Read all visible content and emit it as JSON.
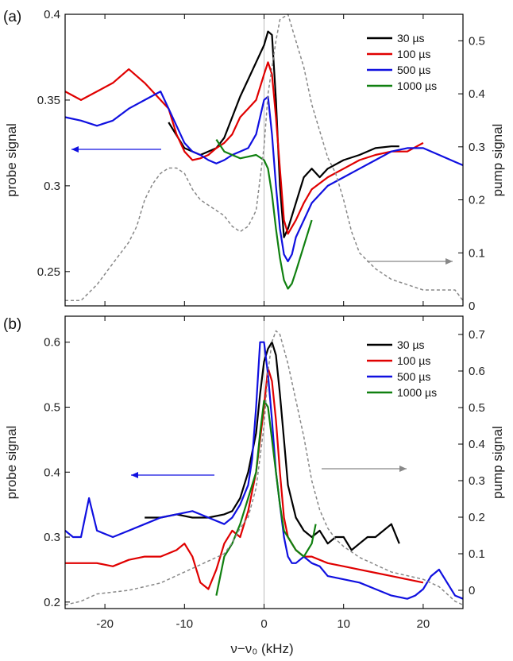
{
  "chart_data": [
    {
      "type": "line",
      "panel_label": "(a)",
      "xlabel": "ν−ν₀ (kHz)",
      "ylabel": "probe signal",
      "y2label": "pump signal",
      "xlim": [
        -25,
        25
      ],
      "ylim": [
        0.23,
        0.4
      ],
      "y2lim": [
        0,
        0.55
      ],
      "xticks": [
        "-20",
        "-10",
        "0",
        "10",
        "20"
      ],
      "yticks": [
        "0.25",
        "0.3",
        "0.35",
        "0.4"
      ],
      "y2ticks": [
        "0",
        "0.1",
        "0.2",
        "0.3",
        "0.4",
        "0.5"
      ],
      "legend_position": "top-right",
      "series": [
        {
          "name": "30 µs",
          "color": "#000000",
          "x": [
            -12,
            -10,
            -8,
            -6,
            -5,
            -4,
            -3,
            -2,
            -1,
            0,
            0.5,
            1,
            1.5,
            2,
            2.5,
            3,
            4,
            5,
            6,
            7,
            8,
            10,
            12,
            14,
            16,
            17
          ],
          "y": [
            0.337,
            0.322,
            0.318,
            0.322,
            0.328,
            0.34,
            0.352,
            0.362,
            0.372,
            0.382,
            0.39,
            0.388,
            0.35,
            0.3,
            0.27,
            0.275,
            0.29,
            0.305,
            0.31,
            0.305,
            0.31,
            0.315,
            0.318,
            0.322,
            0.323,
            0.323
          ]
        },
        {
          "name": "100 µs",
          "color": "#e00000",
          "x": [
            -25,
            -23,
            -21,
            -19,
            -17,
            -15,
            -13,
            -12,
            -11,
            -10,
            -9,
            -8,
            -7,
            -6,
            -5,
            -4,
            -3,
            -2,
            -1,
            0,
            0.5,
            1,
            1.5,
            2,
            2.5,
            3,
            4,
            5,
            6,
            8,
            10,
            12,
            14,
            16,
            18,
            20
          ],
          "y": [
            0.355,
            0.35,
            0.355,
            0.36,
            0.368,
            0.36,
            0.35,
            0.345,
            0.33,
            0.32,
            0.315,
            0.316,
            0.318,
            0.322,
            0.325,
            0.33,
            0.34,
            0.345,
            0.35,
            0.365,
            0.372,
            0.365,
            0.34,
            0.31,
            0.28,
            0.272,
            0.28,
            0.29,
            0.298,
            0.305,
            0.31,
            0.315,
            0.318,
            0.32,
            0.32,
            0.325
          ]
        },
        {
          "name": "500 µs",
          "color": "#1010e0",
          "x": [
            -25,
            -23,
            -21,
            -19,
            -17,
            -15,
            -13,
            -12,
            -11,
            -10,
            -9,
            -8,
            -7,
            -6,
            -5,
            -4,
            -3,
            -2,
            -1,
            0,
            0.5,
            1,
            1.5,
            2,
            2.5,
            3,
            3.5,
            4,
            5,
            6,
            8,
            10,
            12,
            14,
            16,
            18,
            20,
            22,
            24,
            25
          ],
          "y": [
            0.34,
            0.338,
            0.335,
            0.338,
            0.345,
            0.35,
            0.355,
            0.345,
            0.335,
            0.325,
            0.32,
            0.318,
            0.315,
            0.313,
            0.315,
            0.318,
            0.32,
            0.322,
            0.33,
            0.35,
            0.352,
            0.33,
            0.3,
            0.275,
            0.26,
            0.256,
            0.26,
            0.27,
            0.28,
            0.29,
            0.3,
            0.305,
            0.31,
            0.315,
            0.32,
            0.322,
            0.322,
            0.318,
            0.314,
            0.312
          ]
        },
        {
          "name": "1000 µs",
          "color": "#108010",
          "x": [
            -6,
            -5,
            -4,
            -3,
            -2,
            -1,
            0,
            0.5,
            1,
            1.5,
            2,
            2.5,
            3,
            3.5,
            4,
            5,
            6
          ],
          "y": [
            0.327,
            0.32,
            0.318,
            0.316,
            0.317,
            0.318,
            0.315,
            0.31,
            0.295,
            0.275,
            0.258,
            0.245,
            0.24,
            0.243,
            0.25,
            0.265,
            0.28
          ]
        },
        {
          "name": "",
          "color": "#888888",
          "dashed": true,
          "axis": "right",
          "x": [
            -25,
            -23,
            -21,
            -20,
            -19,
            -18,
            -17,
            -16,
            -15,
            -14,
            -13,
            -12,
            -11,
            -10,
            -9,
            -8,
            -7,
            -6,
            -5,
            -4,
            -3,
            -2,
            -1,
            0,
            0.5,
            1,
            1.5,
            2,
            3,
            4,
            5,
            6,
            7,
            8,
            9,
            10,
            11,
            12,
            14,
            16,
            18,
            20,
            22,
            24,
            25
          ],
          "y": [
            0.01,
            0.01,
            0.04,
            0.06,
            0.08,
            0.1,
            0.12,
            0.15,
            0.2,
            0.23,
            0.25,
            0.26,
            0.26,
            0.25,
            0.22,
            0.2,
            0.19,
            0.18,
            0.17,
            0.15,
            0.14,
            0.15,
            0.18,
            0.3,
            0.4,
            0.45,
            0.5,
            0.54,
            0.55,
            0.5,
            0.45,
            0.38,
            0.33,
            0.28,
            0.25,
            0.2,
            0.14,
            0.1,
            0.07,
            0.05,
            0.04,
            0.03,
            0.03,
            0.03,
            0.01
          ]
        }
      ],
      "arrows": [
        {
          "direction": "left",
          "axis": "probe",
          "color": "#1010e0"
        },
        {
          "direction": "right",
          "axis": "pump",
          "color": "#888888"
        }
      ]
    },
    {
      "type": "line",
      "panel_label": "(b)",
      "xlabel": "ν−ν₀ (kHz)",
      "ylabel": "probe signal",
      "y2label": "pump signal",
      "xlim": [
        -25,
        25
      ],
      "ylim": [
        0.19,
        0.64
      ],
      "y2lim": [
        -0.05,
        0.75
      ],
      "xticks": [
        "-20",
        "-10",
        "0",
        "10",
        "20"
      ],
      "yticks": [
        "0.2",
        "0.3",
        "0.4",
        "0.5",
        "0.6"
      ],
      "y2ticks": [
        "0",
        "0.1",
        "0.2",
        "0.3",
        "0.4",
        "0.5",
        "0.6",
        "0.7"
      ],
      "legend_position": "top-right",
      "series": [
        {
          "name": "30 µs",
          "color": "#000000",
          "x": [
            -15,
            -13,
            -11,
            -9,
            -7,
            -5,
            -4,
            -3,
            -2,
            -1,
            -0.5,
            0,
            0.5,
            1,
            1.5,
            2,
            2.5,
            3,
            4,
            5,
            6,
            7,
            8,
            9,
            10,
            11,
            12,
            13,
            14,
            15,
            16,
            17
          ],
          "y": [
            0.33,
            0.33,
            0.335,
            0.33,
            0.33,
            0.335,
            0.34,
            0.36,
            0.4,
            0.46,
            0.52,
            0.57,
            0.59,
            0.6,
            0.58,
            0.52,
            0.45,
            0.38,
            0.33,
            0.31,
            0.3,
            0.31,
            0.29,
            0.3,
            0.3,
            0.28,
            0.29,
            0.3,
            0.3,
            0.31,
            0.32,
            0.29
          ]
        },
        {
          "name": "100 µs",
          "color": "#e00000",
          "x": [
            -25,
            -23,
            -21,
            -19,
            -17,
            -15,
            -13,
            -12,
            -11,
            -10,
            -9,
            -8,
            -7,
            -6,
            -5,
            -4,
            -3,
            -2,
            -1,
            0,
            0.5,
            1,
            1.5,
            2,
            2.5,
            3,
            4,
            5,
            6,
            8,
            10,
            12,
            14,
            16,
            18,
            20
          ],
          "y": [
            0.26,
            0.26,
            0.26,
            0.255,
            0.265,
            0.27,
            0.27,
            0.275,
            0.28,
            0.29,
            0.27,
            0.23,
            0.22,
            0.25,
            0.29,
            0.31,
            0.3,
            0.34,
            0.4,
            0.5,
            0.56,
            0.54,
            0.48,
            0.4,
            0.33,
            0.3,
            0.28,
            0.27,
            0.27,
            0.26,
            0.255,
            0.25,
            0.245,
            0.24,
            0.235,
            0.23
          ]
        },
        {
          "name": "500 µs",
          "color": "#1010e0",
          "x": [
            -25,
            -24,
            -23,
            -22,
            -21,
            -19,
            -17,
            -15,
            -13,
            -11,
            -9,
            -7,
            -5,
            -4,
            -3,
            -2,
            -1.5,
            -1,
            -0.5,
            0,
            0.5,
            1,
            1.5,
            2,
            2.5,
            3,
            3.5,
            4,
            5,
            6,
            7,
            8,
            10,
            12,
            14,
            16,
            18,
            19,
            20,
            21,
            22,
            23,
            24,
            25
          ],
          "y": [
            0.31,
            0.3,
            0.3,
            0.36,
            0.31,
            0.3,
            0.31,
            0.32,
            0.33,
            0.335,
            0.34,
            0.33,
            0.32,
            0.33,
            0.35,
            0.38,
            0.42,
            0.5,
            0.6,
            0.6,
            0.55,
            0.48,
            0.4,
            0.35,
            0.3,
            0.27,
            0.26,
            0.26,
            0.27,
            0.26,
            0.255,
            0.24,
            0.235,
            0.23,
            0.22,
            0.21,
            0.205,
            0.21,
            0.22,
            0.24,
            0.25,
            0.23,
            0.21,
            0.205
          ]
        },
        {
          "name": "1000 µs",
          "color": "#108010",
          "x": [
            -6,
            -5,
            -4,
            -3,
            -2,
            -1,
            -0.5,
            0,
            0.5,
            1,
            1.5,
            2,
            2.5,
            3,
            4,
            5,
            6,
            6.5
          ],
          "y": [
            0.21,
            0.27,
            0.29,
            0.32,
            0.36,
            0.4,
            0.46,
            0.51,
            0.5,
            0.45,
            0.4,
            0.35,
            0.31,
            0.3,
            0.28,
            0.27,
            0.29,
            0.32
          ]
        },
        {
          "name": "",
          "color": "#888888",
          "dashed": true,
          "axis": "right",
          "x": [
            -25,
            -23,
            -21,
            -19,
            -17,
            -15,
            -13,
            -11,
            -9,
            -7,
            -5,
            -4,
            -3,
            -2,
            -1,
            0,
            0.5,
            1,
            1.5,
            2,
            3,
            4,
            5,
            6,
            7,
            8,
            9,
            10,
            12,
            14,
            16,
            18,
            20,
            22,
            24,
            25
          ],
          "y": [
            -0.04,
            -0.03,
            -0.01,
            -0.005,
            0.0,
            0.01,
            0.02,
            0.04,
            0.06,
            0.08,
            0.1,
            0.13,
            0.17,
            0.2,
            0.28,
            0.45,
            0.6,
            0.68,
            0.71,
            0.7,
            0.62,
            0.52,
            0.42,
            0.3,
            0.22,
            0.17,
            0.14,
            0.12,
            0.09,
            0.07,
            0.05,
            0.04,
            0.03,
            0.01,
            -0.03,
            -0.04
          ]
        }
      ],
      "arrows": [
        {
          "direction": "left",
          "axis": "probe",
          "color": "#1010e0"
        },
        {
          "direction": "right",
          "axis": "pump",
          "color": "#888888"
        }
      ]
    }
  ]
}
